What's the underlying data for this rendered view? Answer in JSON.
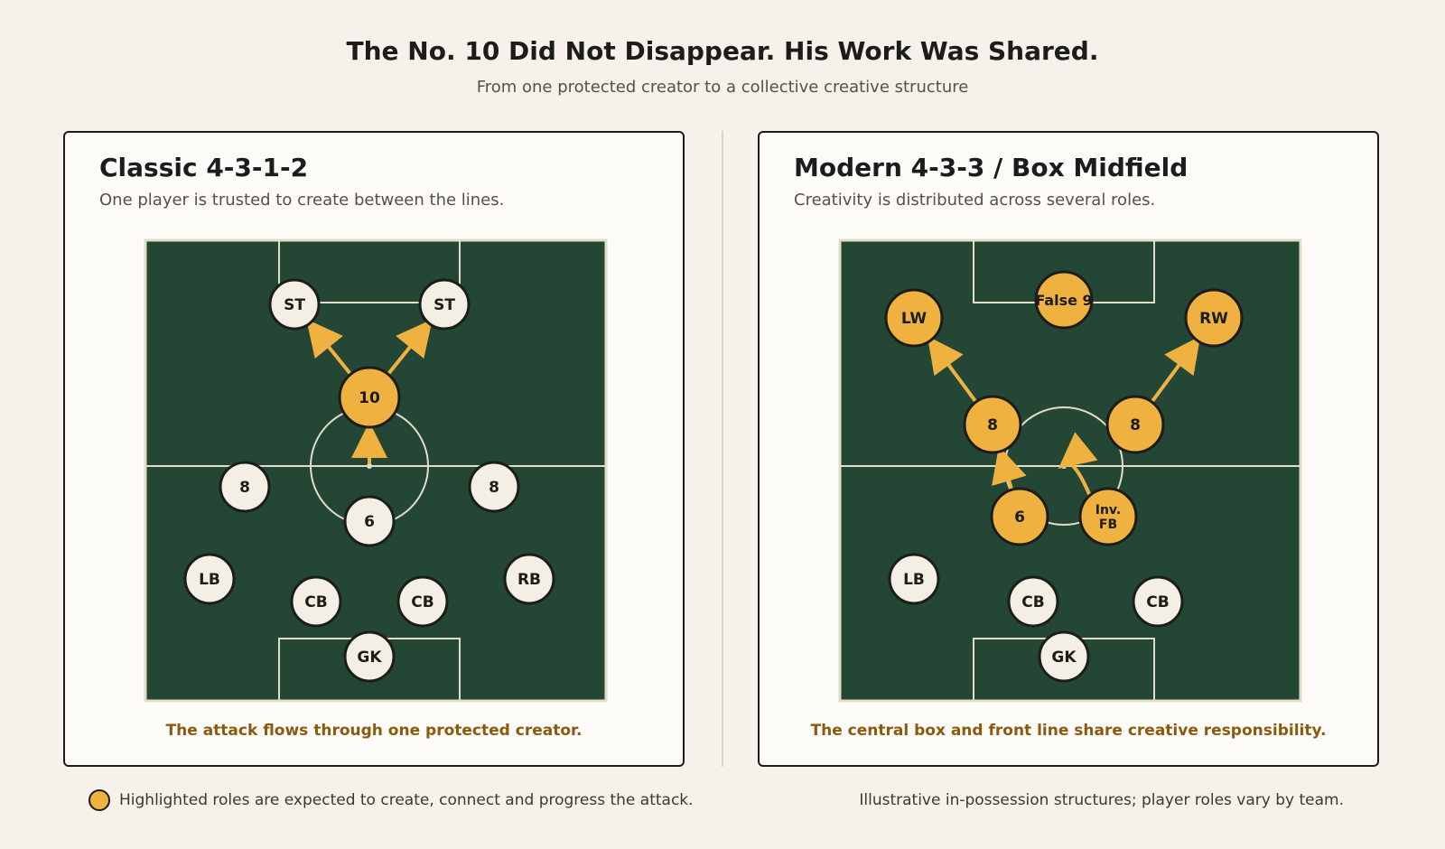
{
  "header": {
    "title": "The No. 10 Did Not Disappear. His Work Was Shared.",
    "subtitle": "From one protected creator to a collective creative structure"
  },
  "colors": {
    "pitch": "#244735",
    "pitch_lines": "#e2dcc8",
    "highlight": "#efb140",
    "player": "#f3efe4",
    "outline": "#1c1c1a",
    "caption": "#8a5a0e"
  },
  "panels": [
    {
      "title": "Classic 4-3-1-2",
      "description": "One player is trusted to create between the lines.",
      "caption": "The attack flows through one protected creator.",
      "players": [
        {
          "id": "st1",
          "label": "ST",
          "highlight": false
        },
        {
          "id": "st2",
          "label": "ST",
          "highlight": false
        },
        {
          "id": "ten",
          "label": "10",
          "highlight": true
        },
        {
          "id": "m8l",
          "label": "8",
          "highlight": false
        },
        {
          "id": "m8r",
          "label": "8",
          "highlight": false
        },
        {
          "id": "six",
          "label": "6",
          "highlight": false
        },
        {
          "id": "lb",
          "label": "LB",
          "highlight": false
        },
        {
          "id": "rb",
          "label": "RB",
          "highlight": false
        },
        {
          "id": "cb1",
          "label": "CB",
          "highlight": false
        },
        {
          "id": "cb2",
          "label": "CB",
          "highlight": false
        },
        {
          "id": "gk",
          "label": "GK",
          "highlight": false
        }
      ],
      "arrows": [
        {
          "from": "ten",
          "to": "st1"
        },
        {
          "from": "ten",
          "to": "st2"
        },
        {
          "from": "centre",
          "to": "ten"
        }
      ]
    },
    {
      "title": "Modern 4-3-3 / Box Midfield",
      "description": "Creativity is distributed across several roles.",
      "caption": "The central box and front line share creative responsibility.",
      "players": [
        {
          "id": "f9",
          "label": "False 9",
          "highlight": true
        },
        {
          "id": "lw",
          "label": "LW",
          "highlight": true
        },
        {
          "id": "rw",
          "label": "RW",
          "highlight": true
        },
        {
          "id": "m8l",
          "label": "8",
          "highlight": true
        },
        {
          "id": "m8r",
          "label": "8",
          "highlight": true
        },
        {
          "id": "six",
          "label": "6",
          "highlight": true
        },
        {
          "id": "ifb",
          "label": "Inv.\nFB",
          "highlight": true
        },
        {
          "id": "lb",
          "label": "LB",
          "highlight": false
        },
        {
          "id": "cb1",
          "label": "CB",
          "highlight": false
        },
        {
          "id": "cb2",
          "label": "CB",
          "highlight": false
        },
        {
          "id": "gk",
          "label": "GK",
          "highlight": false
        }
      ],
      "arrows": [
        {
          "from": "m8l",
          "to": "lw"
        },
        {
          "from": "m8r",
          "to": "rw"
        },
        {
          "from": "six",
          "to": "m8l"
        },
        {
          "from": "ifb",
          "to": "centre"
        }
      ]
    }
  ],
  "footer": {
    "legend": "Highlighted roles are expected to create, connect and progress the attack.",
    "note": "Illustrative in-possession structures; player roles vary by team."
  }
}
